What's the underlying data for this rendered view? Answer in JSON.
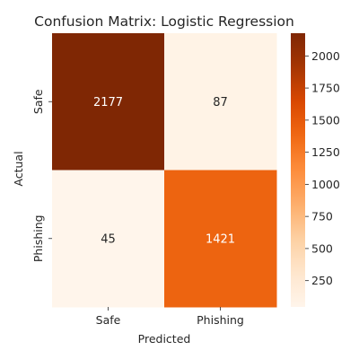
{
  "chart_data": {
    "type": "heatmap",
    "title": "Confusion Matrix: Logistic Regression",
    "xlabel": "Predicted",
    "ylabel": "Actual",
    "x_categories": [
      "Safe",
      "Phishing"
    ],
    "y_categories": [
      "Safe",
      "Phishing"
    ],
    "values": [
      [
        2177,
        87
      ],
      [
        45,
        1421
      ]
    ],
    "colormap": "Oranges",
    "color_range": [
      45,
      2177
    ],
    "colorbar_ticks": [
      250,
      500,
      750,
      1000,
      1250,
      1500,
      1750,
      2000
    ],
    "colors": [
      "#fff5eb",
      "#fee6ce",
      "#fdd0a2",
      "#fdae6b",
      "#fd8d3c",
      "#f16913",
      "#d94801",
      "#a63603",
      "#7f2704"
    ]
  }
}
